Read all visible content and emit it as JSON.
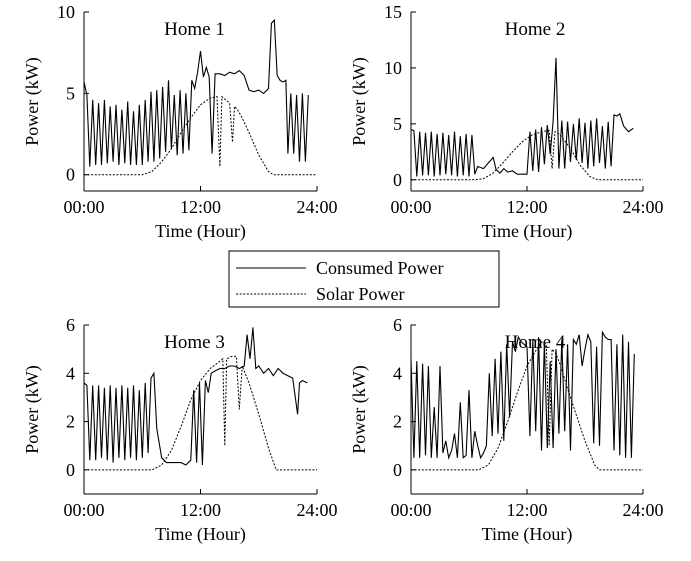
{
  "chart_data": [
    {
      "type": "line",
      "title": "Home 1",
      "xlabel": "Time (Hour)",
      "ylabel": "Power (kW)",
      "xlim": [
        0,
        24
      ],
      "ylim": [
        -1,
        10
      ],
      "xticks": [
        0,
        12,
        24
      ],
      "xtick_labels": [
        "00:00",
        "12:00",
        "24:00"
      ],
      "yticks": [
        0,
        5,
        10
      ],
      "ytick_labels": [
        "0",
        "5",
        "10"
      ],
      "series": [
        {
          "name": "Consumed Power",
          "x": [
            0,
            0.3,
            0.6,
            0.9,
            1.2,
            1.5,
            1.8,
            2.1,
            2.4,
            2.7,
            3.0,
            3.3,
            3.6,
            3.9,
            4.2,
            4.5,
            4.8,
            5.1,
            5.4,
            5.7,
            6.0,
            6.3,
            6.6,
            6.9,
            7.2,
            7.5,
            7.8,
            8.1,
            8.4,
            8.7,
            9.0,
            9.3,
            9.6,
            9.9,
            10.2,
            10.5,
            10.8,
            11.1,
            11.4,
            11.7,
            12.0,
            12.3,
            12.6,
            12.9,
            13.2,
            13.5,
            14.0,
            14.5,
            15.0,
            15.5,
            16.0,
            16.5,
            17.0,
            17.5,
            18.0,
            18.5,
            19.0,
            19.3,
            19.6,
            19.9,
            20.2,
            20.5,
            20.8,
            21.0,
            21.3,
            21.6,
            21.9,
            22.2,
            22.5,
            22.8,
            23.1
          ],
          "y": [
            5.7,
            4.9,
            0.5,
            4.6,
            0.6,
            4.4,
            0.6,
            4.6,
            0.7,
            4.2,
            0.8,
            4.3,
            0.6,
            4.0,
            0.7,
            4.5,
            0.6,
            3.9,
            0.6,
            4.3,
            0.6,
            4.6,
            0.8,
            5.1,
            0.8,
            5.2,
            1.0,
            5.4,
            1.4,
            5.8,
            1.6,
            4.9,
            1.2,
            5.2,
            1.3,
            5.0,
            1.5,
            5.8,
            5.3,
            6.3,
            7.6,
            6.0,
            6.6,
            6.0,
            1.3,
            6.2,
            6.2,
            6.1,
            6.3,
            6.2,
            6.4,
            6.1,
            5.2,
            5.1,
            5.2,
            5.0,
            5.3,
            9.3,
            9.5,
            6.1,
            5.8,
            5.7,
            5.8,
            1.3,
            5.0,
            1.3,
            4.9,
            0.8,
            5.0,
            0.8,
            4.9
          ]
        },
        {
          "name": "Solar Power",
          "x": [
            0,
            6.0,
            7.0,
            8.0,
            9.0,
            10.0,
            11.0,
            12.0,
            13.0,
            13.7,
            14.0,
            14.2,
            14.4,
            14.6,
            15.0,
            15.3,
            15.5,
            15.8,
            16.2,
            17.0,
            18.0,
            19.0,
            19.5,
            24.0
          ],
          "y": [
            0,
            0,
            0.2,
            0.8,
            1.6,
            2.6,
            3.5,
            4.3,
            4.7,
            4.8,
            0.5,
            4.8,
            4.7,
            4.6,
            4.4,
            2.0,
            4.2,
            4.0,
            3.6,
            2.6,
            1.2,
            0.2,
            0,
            0
          ]
        }
      ]
    },
    {
      "type": "line",
      "title": "Home 2",
      "xlabel": "Time (Hour)",
      "ylabel": "Power (kW)",
      "xlim": [
        0,
        24
      ],
      "ylim": [
        -1,
        15
      ],
      "xticks": [
        0,
        12,
        24
      ],
      "xtick_labels": [
        "00:00",
        "12:00",
        "24:00"
      ],
      "yticks": [
        0,
        5,
        10,
        15
      ],
      "ytick_labels": [
        "0",
        "5",
        "10",
        "15"
      ],
      "series": [
        {
          "name": "Consumed Power",
          "x": [
            0,
            0.3,
            0.6,
            0.9,
            1.2,
            1.5,
            1.8,
            2.1,
            2.4,
            2.7,
            3.0,
            3.3,
            3.6,
            3.9,
            4.2,
            4.5,
            4.8,
            5.1,
            5.4,
            5.7,
            6.0,
            6.3,
            6.6,
            6.9,
            7.5,
            8.0,
            8.5,
            8.8,
            9.2,
            9.6,
            10.0,
            10.5,
            11.0,
            11.5,
            12.0,
            12.3,
            12.6,
            12.9,
            13.2,
            13.5,
            13.8,
            14.1,
            14.4,
            14.7,
            15.0,
            15.3,
            15.6,
            15.9,
            16.2,
            16.5,
            16.8,
            17.1,
            17.4,
            17.7,
            18.0,
            18.3,
            18.6,
            18.9,
            19.2,
            19.5,
            19.8,
            20.1,
            20.4,
            20.7,
            21.0,
            21.3,
            21.6,
            22.0,
            22.5,
            23.0
          ],
          "y": [
            4.5,
            4.4,
            0.3,
            4.3,
            0.4,
            4.2,
            0.4,
            4.3,
            0.3,
            4.1,
            0.4,
            4.2,
            0.5,
            4.0,
            0.4,
            4.3,
            0.3,
            3.9,
            0.4,
            4.1,
            0.3,
            4.0,
            0.5,
            1.2,
            1.0,
            1.5,
            2.0,
            0.9,
            0.6,
            1.0,
            0.7,
            0.8,
            0.5,
            0.5,
            0.5,
            4.3,
            0.8,
            4.5,
            0.7,
            4.7,
            1.4,
            4.9,
            2.3,
            5.2,
            10.9,
            1.0,
            5.3,
            1.0,
            5.2,
            1.6,
            5.0,
            1.8,
            5.5,
            1.5,
            5.1,
            1.0,
            5.3,
            1.2,
            5.5,
            1.5,
            4.8,
            1.0,
            5.2,
            1.2,
            5.8,
            5.7,
            5.9,
            4.8,
            4.3,
            4.6
          ]
        },
        {
          "name": "Solar Power",
          "x": [
            0,
            6.5,
            7.5,
            8.5,
            9.5,
            10.5,
            11.5,
            12.5,
            13.5,
            14.3,
            14.6,
            14.9,
            15.3,
            15.7,
            16.5,
            17.5,
            18.5,
            19.3,
            24.0
          ],
          "y": [
            0,
            0,
            0.1,
            0.6,
            1.5,
            2.5,
            3.4,
            4.0,
            4.3,
            4.4,
            1.0,
            4.3,
            4.1,
            3.7,
            2.8,
            1.3,
            0.3,
            0,
            0
          ]
        }
      ]
    },
    {
      "type": "line",
      "title": "Home 3",
      "xlabel": "Time (Hour)",
      "ylabel": "Power (kW)",
      "xlim": [
        0,
        24
      ],
      "ylim": [
        -1,
        6
      ],
      "xticks": [
        0,
        12,
        24
      ],
      "xtick_labels": [
        "00:00",
        "12:00",
        "24:00"
      ],
      "yticks": [
        0,
        2,
        4,
        6
      ],
      "ytick_labels": [
        "0",
        "2",
        "4",
        "6"
      ],
      "series": [
        {
          "name": "Consumed Power",
          "x": [
            0,
            0.3,
            0.6,
            0.9,
            1.2,
            1.5,
            1.8,
            2.1,
            2.4,
            2.7,
            3.0,
            3.3,
            3.6,
            3.9,
            4.2,
            4.5,
            4.8,
            5.1,
            5.4,
            5.7,
            6.0,
            6.3,
            6.6,
            6.9,
            7.2,
            7.5,
            8.0,
            8.5,
            9.0,
            9.5,
            10.0,
            10.5,
            11.0,
            11.3,
            11.6,
            11.9,
            12.2,
            12.5,
            12.8,
            13.1,
            13.5,
            14.0,
            14.5,
            15.0,
            15.5,
            16.0,
            16.5,
            16.8,
            17.1,
            17.4,
            17.7,
            18.0,
            18.5,
            19.0,
            19.5,
            20.0,
            20.5,
            21.0,
            21.5,
            22.0,
            22.2,
            22.5,
            23.0
          ],
          "y": [
            3.6,
            3.5,
            0.4,
            3.5,
            0.4,
            3.5,
            0.5,
            3.4,
            0.4,
            3.5,
            0.3,
            3.4,
            0.5,
            3.5,
            0.4,
            3.4,
            0.5,
            3.5,
            0.4,
            3.3,
            0.5,
            3.6,
            0.7,
            3.8,
            4.0,
            1.7,
            0.5,
            0.3,
            0.3,
            0.3,
            0.3,
            0.2,
            0.4,
            3.3,
            0.3,
            3.6,
            0.2,
            3.7,
            3.2,
            4.0,
            4.1,
            4.2,
            4.2,
            4.3,
            4.3,
            4.2,
            4.3,
            5.6,
            4.6,
            5.9,
            4.2,
            4.3,
            4.0,
            4.2,
            3.9,
            4.2,
            4.0,
            3.9,
            3.8,
            2.3,
            3.6,
            3.7,
            3.6
          ]
        },
        {
          "name": "Solar Power",
          "x": [
            0,
            7.0,
            8.0,
            9.0,
            10.0,
            11.0,
            12.0,
            13.0,
            14.0,
            14.3,
            14.5,
            14.7,
            15.2,
            15.7,
            16.0,
            16.3,
            16.6,
            17.0,
            18.0,
            19.0,
            19.8,
            24.0
          ],
          "y": [
            0,
            0,
            0.2,
            0.8,
            1.8,
            2.9,
            3.7,
            4.2,
            4.5,
            4.6,
            1.0,
            4.6,
            4.7,
            4.7,
            2.5,
            4.3,
            4.0,
            3.6,
            2.3,
            0.9,
            0,
            0
          ]
        }
      ]
    },
    {
      "type": "line",
      "title": "Home 4",
      "xlabel": "Time (Hour)",
      "ylabel": "Power (kW)",
      "xlim": [
        0,
        24
      ],
      "ylim": [
        -1,
        6
      ],
      "xticks": [
        0,
        12,
        24
      ],
      "xtick_labels": [
        "00:00",
        "12:00",
        "24:00"
      ],
      "yticks": [
        0,
        2,
        4,
        6
      ],
      "ytick_labels": [
        "0",
        "2",
        "4",
        "6"
      ],
      "series": [
        {
          "name": "Consumed Power",
          "x": [
            0,
            0.3,
            0.6,
            0.9,
            1.2,
            1.5,
            1.8,
            2.1,
            2.4,
            2.7,
            3.0,
            3.3,
            3.6,
            3.9,
            4.2,
            4.5,
            4.8,
            5.1,
            5.4,
            5.7,
            6.0,
            6.3,
            6.6,
            6.9,
            7.2,
            7.5,
            7.8,
            8.1,
            8.4,
            8.7,
            9.0,
            9.3,
            9.6,
            9.9,
            10.2,
            10.5,
            10.8,
            11.1,
            11.4,
            11.7,
            12.0,
            12.3,
            12.6,
            12.9,
            13.2,
            13.5,
            13.8,
            14.1,
            14.4,
            14.7,
            15.0,
            15.3,
            15.6,
            15.9,
            16.2,
            16.5,
            16.8,
            17.1,
            17.4,
            17.7,
            18.0,
            18.3,
            18.6,
            18.9,
            19.2,
            19.5,
            19.8,
            20.1,
            20.4,
            20.7,
            21.0,
            21.3,
            21.6,
            21.9,
            22.2,
            22.5,
            22.8,
            23.1
          ],
          "y": [
            4.6,
            0.5,
            4.5,
            0.5,
            4.4,
            0.6,
            4.3,
            0.5,
            2.6,
            0.5,
            4.3,
            0.7,
            1.2,
            0.5,
            0.8,
            1.5,
            0.5,
            2.8,
            0.5,
            0.6,
            3.3,
            0.5,
            1.6,
            1.0,
            0.5,
            0.7,
            1.0,
            4.0,
            1.4,
            4.6,
            1.5,
            4.9,
            1.2,
            5.2,
            2.2,
            5.3,
            4.9,
            5.5,
            5.3,
            5.2,
            5.1,
            1.4,
            5.4,
            1.6,
            5.5,
            0.8,
            5.3,
            0.9,
            4.5,
            0.9,
            5.0,
            1.5,
            5.4,
            1.6,
            5.2,
            0.8,
            5.4,
            5.2,
            5.6,
            4.3,
            5.0,
            5.6,
            5.3,
            1.1,
            5.1,
            1.0,
            5.7,
            5.5,
            5.4,
            5.4,
            0.8,
            5.2,
            0.6,
            5.6,
            0.5,
            5.3,
            0.5,
            4.8
          ]
        },
        {
          "name": "Solar Power",
          "x": [
            0,
            7.0,
            8.0,
            9.0,
            10.0,
            11.0,
            12.0,
            13.0,
            13.5,
            14.0,
            14.3,
            14.6,
            15.0,
            15.5,
            16.0,
            17.0,
            18.0,
            19.0,
            19.5,
            24.0
          ],
          "y": [
            0,
            0,
            0.2,
            0.9,
            2.0,
            3.2,
            4.3,
            5.0,
            5.3,
            5.2,
            1.0,
            5.0,
            4.8,
            4.3,
            3.6,
            2.4,
            1.2,
            0.2,
            0,
            0
          ]
        }
      ]
    }
  ],
  "legend": {
    "location": "center",
    "entries": [
      {
        "label": "Consumed Power",
        "style": "solid"
      },
      {
        "label": "Solar Power",
        "style": "dotted"
      }
    ]
  }
}
